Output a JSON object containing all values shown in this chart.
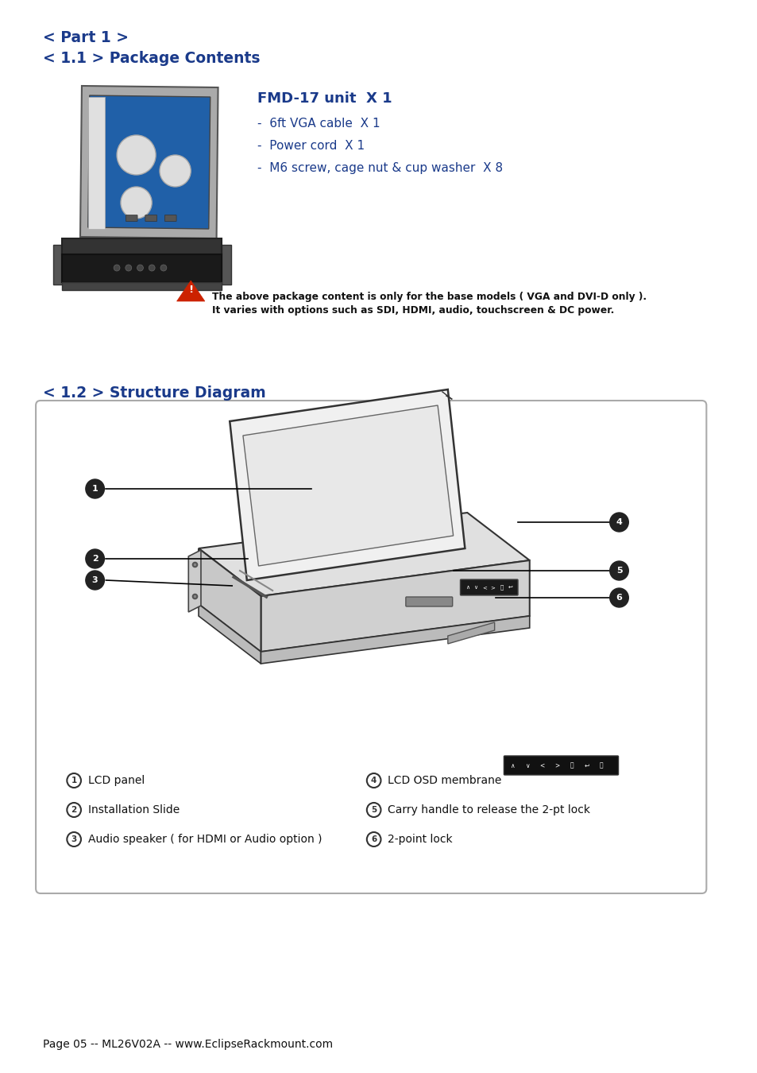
{
  "bg_color": "#ffffff",
  "heading1": "< Part 1 >",
  "heading2": "< 1.1 > Package Contents",
  "heading3": "< 1.2 > Structure Diagram",
  "heading_color": "#1a3a8a",
  "fmd_title": "FMD-17 unit  X 1",
  "fmd_items": [
    "-  6ft VGA cable  X 1",
    "-  Power cord  X 1",
    "-  M6 screw, cage nut & cup washer  X 8"
  ],
  "fmd_color": "#1a3a8a",
  "warning_text1": "The above package content is only for the base models ( VGA and DVI-D only ).",
  "warning_text2": "It varies with options such as SDI, HDMI, audio, touchscreen & DC power.",
  "labels_left": [
    [
      1,
      "LCD panel"
    ],
    [
      2,
      "Installation Slide"
    ],
    [
      3,
      "Audio speaker ( for HDMI or Audio option )"
    ]
  ],
  "labels_right": [
    [
      4,
      "LCD OSD membrane"
    ],
    [
      5,
      "Carry handle to release the 2-pt lock"
    ],
    [
      6,
      "2-point lock"
    ]
  ],
  "footer": "Page 05 -- ML26V02A -- www.EclipseRackmount.com"
}
